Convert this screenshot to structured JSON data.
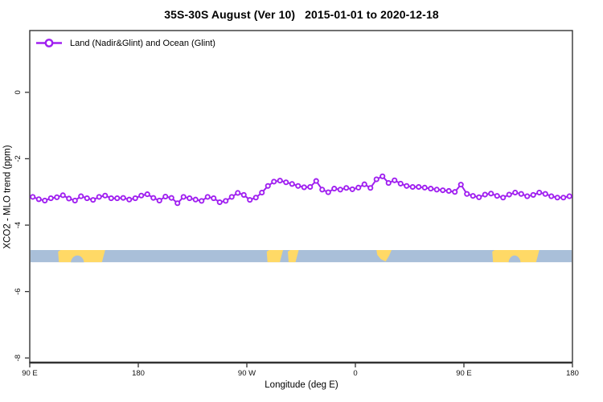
{
  "title": "35S-30S August (Ver 10)   2015-01-01 to 2020-12-18",
  "legend": {
    "label": "Land (Nadir&Glint) and Ocean (Glint)",
    "symbol": "line-with-open-circle"
  },
  "colors": {
    "series": "#A020F0",
    "marker_fill": "#FFFFFF",
    "axis": "#333333",
    "text": "#111111",
    "ocean_strip": "#A9BFD9",
    "land_strip": "#FFD966",
    "background": "#FFFFFF"
  },
  "axes": {
    "x_label": "Longitude (deg E)",
    "y_label": "XCO2 - MLO trend (ppm)",
    "x_range": [
      90,
      540
    ],
    "y_range": [
      1.86,
      -8.14
    ],
    "x_ticks": [
      {
        "pos": 90,
        "label": "90 E"
      },
      {
        "pos": 180,
        "label": "180"
      },
      {
        "pos": 270,
        "label": "90 W"
      },
      {
        "pos": 360,
        "label": "0"
      },
      {
        "pos": 450,
        "label": "90 E"
      },
      {
        "pos": 540,
        "label": "180"
      }
    ],
    "y_ticks": [
      {
        "pos": 0,
        "label": "0"
      },
      {
        "pos": -2,
        "label": "-2"
      },
      {
        "pos": -4,
        "label": "-4"
      },
      {
        "pos": -6,
        "label": "-6"
      },
      {
        "pos": -8,
        "label": "-8"
      }
    ]
  },
  "chart_data": {
    "type": "line",
    "title": "35S-30S August (Ver 10)   2015-01-01 to 2020-12-18",
    "xlabel": "Longitude (deg E)",
    "ylabel": "XCO2 - MLO trend (ppm)",
    "xlim": [
      90,
      540
    ],
    "ylim": [
      1.86,
      -8.14
    ],
    "grid": false,
    "legend_position": "top-left-inside",
    "x_axis_note": "longitude axis wraps: 90E -> 180 -> 90W -> 0 -> 90E -> 180; values >180 or >360 are wrapped degrees east",
    "series": [
      {
        "name": "Land (Nadir&Glint) and Ocean (Glint)",
        "color": "#A020F0",
        "marker": "open-circle",
        "x": [
          92.5,
          97.5,
          102.5,
          107.5,
          112.5,
          117.5,
          122.5,
          127.5,
          132.5,
          137.5,
          142.5,
          147.5,
          152.5,
          157.5,
          162.5,
          167.5,
          172.5,
          177.5,
          182.5,
          187.5,
          192.5,
          197.5,
          202.5,
          207.5,
          212.5,
          217.5,
          222.5,
          227.5,
          232.5,
          237.5,
          242.5,
          247.5,
          252.5,
          257.5,
          262.5,
          267.5,
          272.5,
          277.5,
          282.5,
          287.5,
          292.5,
          297.5,
          302.5,
          307.5,
          312.5,
          317.5,
          322.5,
          327.5,
          332.5,
          337.5,
          342.5,
          347.5,
          352.5,
          357.5,
          362.5,
          367.5,
          372.5,
          377.5,
          382.5,
          387.5,
          392.5,
          397.5,
          402.5,
          407.5,
          412.5,
          417.5,
          422.5,
          427.5,
          432.5,
          437.5,
          442.5,
          447.5,
          452.5,
          457.5,
          462.5,
          467.5,
          472.5,
          477.5,
          482.5,
          487.5,
          492.5,
          497.5,
          502.5,
          507.5,
          512.5,
          517.5,
          522.5,
          527.5,
          532.5,
          537.5
        ],
        "values": [
          -3.15,
          -3.22,
          -3.26,
          -3.19,
          -3.16,
          -3.1,
          -3.2,
          -3.26,
          -3.13,
          -3.19,
          -3.24,
          -3.15,
          -3.11,
          -3.19,
          -3.19,
          -3.18,
          -3.23,
          -3.19,
          -3.11,
          -3.07,
          -3.18,
          -3.26,
          -3.14,
          -3.18,
          -3.34,
          -3.15,
          -3.19,
          -3.23,
          -3.27,
          -3.15,
          -3.19,
          -3.31,
          -3.27,
          -3.15,
          -3.03,
          -3.09,
          -3.24,
          -3.17,
          -3.02,
          -2.82,
          -2.69,
          -2.66,
          -2.71,
          -2.76,
          -2.82,
          -2.86,
          -2.85,
          -2.67,
          -2.93,
          -3.01,
          -2.9,
          -2.93,
          -2.88,
          -2.92,
          -2.87,
          -2.77,
          -2.88,
          -2.62,
          -2.53,
          -2.73,
          -2.65,
          -2.75,
          -2.82,
          -2.85,
          -2.85,
          -2.87,
          -2.9,
          -2.93,
          -2.95,
          -2.97,
          -3.0,
          -2.78,
          -3.06,
          -3.12,
          -3.16,
          -3.08,
          -3.05,
          -3.12,
          -3.17,
          -3.08,
          -3.02,
          -3.06,
          -3.13,
          -3.09,
          -3.02,
          -3.06,
          -3.13,
          -3.17,
          -3.17,
          -3.13
        ]
      }
    ],
    "map_strip": {
      "description": "land/ocean reference band for 35S-30S latitude zone",
      "value_top": -4.75,
      "value_bottom": -5.12,
      "ocean_color": "#A9BFD9",
      "land_color": "#FFD966",
      "land_segments": [
        {
          "name": "australia",
          "from": 113.5,
          "to": 152.5,
          "notch_from": 124,
          "notch_to": 135
        },
        {
          "name": "south-america-west",
          "from": 286.5,
          "to": 300
        },
        {
          "name": "south-america-east",
          "from": 304,
          "to": 313
        },
        {
          "name": "south-africa",
          "from": 377.5,
          "to": 390,
          "taper": true
        },
        {
          "name": "australia-wrapped",
          "from": 473.5,
          "to": 512.5,
          "notch_from": 487,
          "notch_to": 497
        }
      ]
    }
  }
}
